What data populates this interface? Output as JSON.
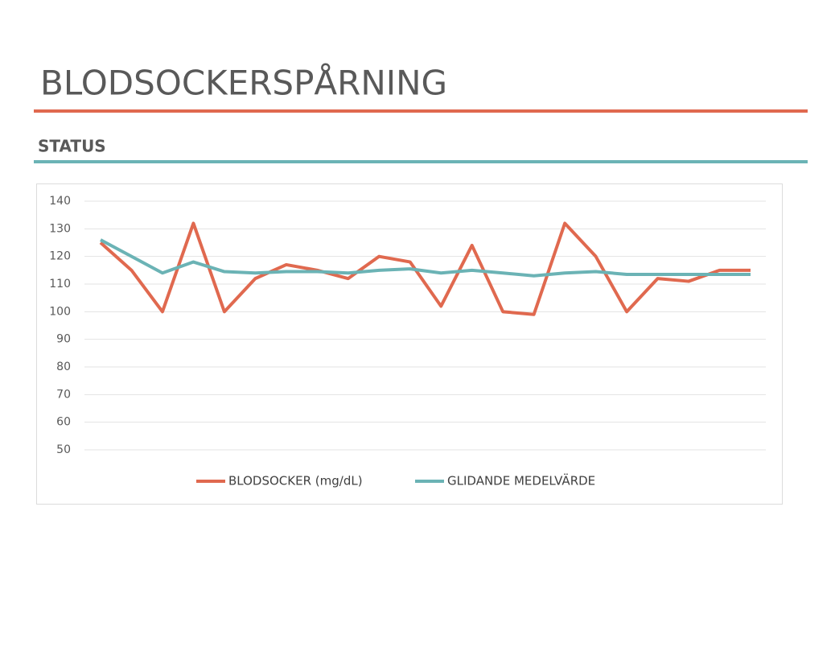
{
  "header": {
    "title": "BLODSOCKERSPÅRNING",
    "subtitle": "STATUS"
  },
  "chart_data": {
    "type": "line",
    "categories": [
      null,
      null,
      null,
      null,
      null,
      null,
      null,
      null,
      null,
      null,
      null,
      null,
      null,
      null,
      null,
      null,
      null,
      null,
      null,
      null,
      null,
      null
    ],
    "series": [
      {
        "name": "BLODSOCKER (mg/dL)",
        "color": "#e0694f",
        "values": [
          125,
          115,
          100,
          132,
          100,
          112,
          117,
          115,
          112,
          120,
          118,
          102,
          124,
          100,
          99,
          132,
          120,
          100,
          112,
          111,
          115,
          115
        ]
      },
      {
        "name": "GLIDANDE MEDELVÄRDE",
        "color": "#6bb3b5",
        "values": [
          126,
          120,
          114,
          118,
          114.5,
          114,
          114.5,
          114.5,
          114,
          115,
          115.5,
          114,
          115,
          114,
          113,
          114,
          114.5,
          113.5,
          113.5,
          113.5,
          113.5,
          113.5
        ]
      }
    ],
    "ylim": [
      50,
      140
    ],
    "yticks": [
      50,
      60,
      70,
      80,
      90,
      100,
      110,
      120,
      130,
      140
    ],
    "grid": true,
    "legend": "bottom"
  }
}
